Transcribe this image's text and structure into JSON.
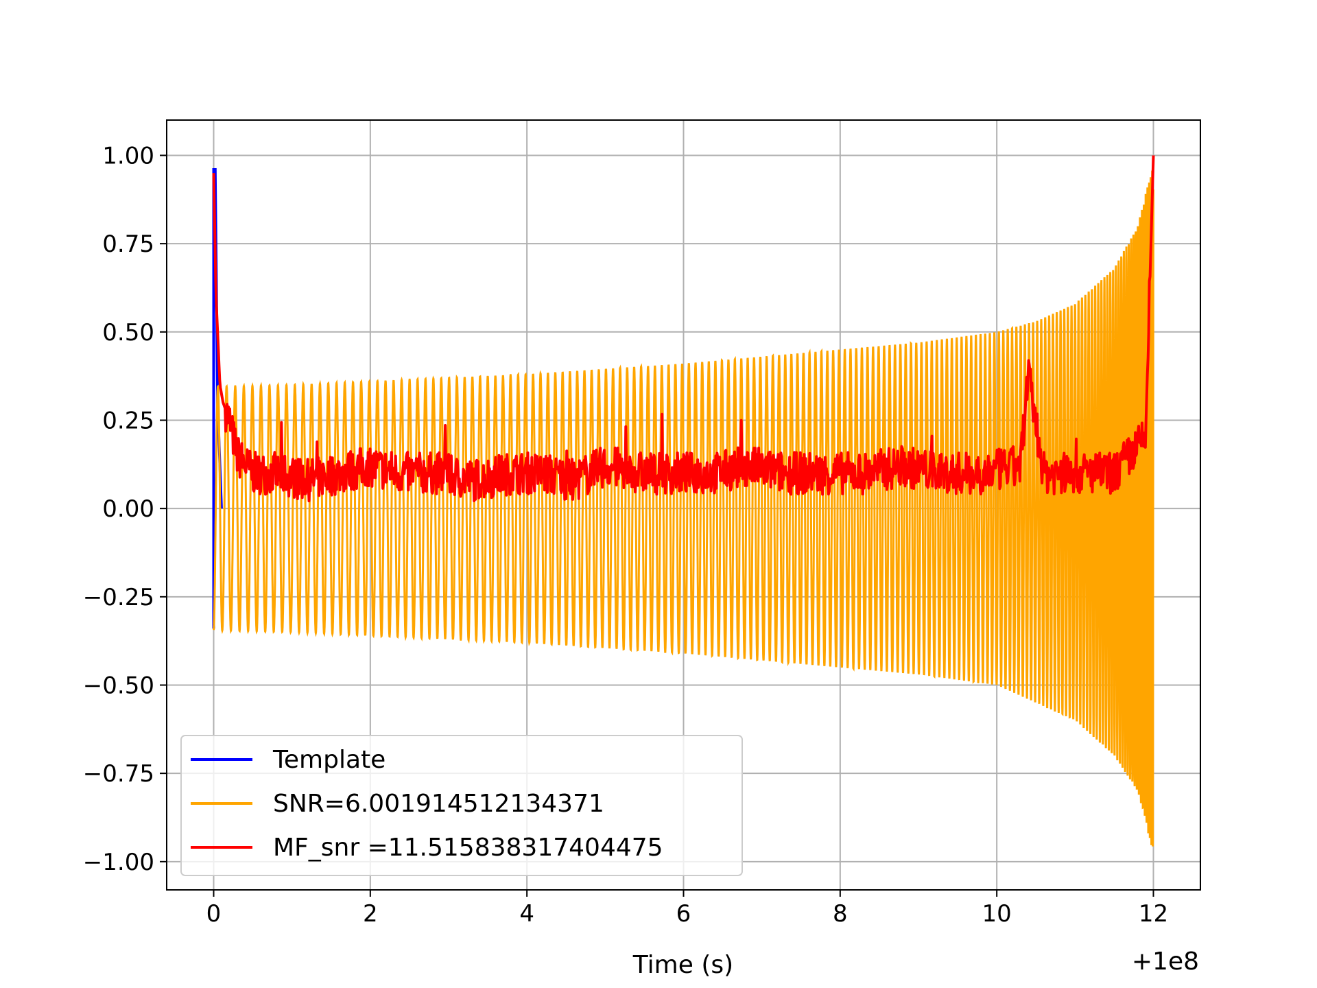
{
  "chart_data": {
    "type": "line",
    "title": "",
    "xlabel": "Time (s)",
    "ylabel": "",
    "x_offset_label": "+1e8",
    "xlim": [
      -0.6,
      12.6
    ],
    "ylim": [
      -1.08,
      1.1
    ],
    "xticks": [
      0,
      2,
      4,
      6,
      8,
      10,
      12
    ],
    "xtick_labels": [
      "0",
      "2",
      "4",
      "6",
      "8",
      "10",
      "12"
    ],
    "yticks": [
      1.0,
      0.75,
      0.5,
      0.25,
      0.0,
      -0.25,
      -0.5,
      -0.75,
      -1.0
    ],
    "ytick_labels": [
      "1.00",
      "0.75",
      "0.50",
      "0.25",
      "0.00",
      "−0.25",
      "−0.50",
      "−0.75",
      "−1.00"
    ],
    "grid": true,
    "legend_position": "bottom-left",
    "series": [
      {
        "name": "Template",
        "color": "#0000ff",
        "description_points": {
          "x": [
            0.0,
            0.0,
            0.02,
            0.05,
            0.1
          ],
          "y": [
            -0.34,
            0.96,
            0.96,
            0.3,
            0.0
          ]
        }
      },
      {
        "name": "SNR=6.001914512134371",
        "color": "#ffa500",
        "envelope": {
          "x": [
            0,
            1,
            2,
            3,
            4,
            5,
            6,
            7,
            8,
            9,
            10,
            10.5,
            11,
            11.5,
            11.8,
            12
          ],
          "upper": [
            0.345,
            0.35,
            0.36,
            0.37,
            0.38,
            0.395,
            0.41,
            0.43,
            0.45,
            0.47,
            0.5,
            0.53,
            0.58,
            0.68,
            0.8,
            0.98
          ],
          "lower": [
            -0.345,
            -0.35,
            -0.36,
            -0.37,
            -0.38,
            -0.395,
            -0.41,
            -0.43,
            -0.45,
            -0.47,
            -0.5,
            -0.55,
            -0.6,
            -0.7,
            -0.8,
            -0.98
          ]
        }
      },
      {
        "name": "MF_snr =11.515838317404475",
        "color": "#ff0000",
        "x": [
          0.0,
          0.03,
          0.08,
          0.12,
          0.2,
          0.3,
          0.5,
          0.8,
          1.2,
          1.6,
          2.0,
          2.4,
          2.9,
          3.3,
          3.8,
          4.2,
          4.6,
          5.0,
          5.5,
          5.9,
          6.4,
          6.8,
          7.3,
          7.8,
          8.3,
          8.8,
          9.3,
          9.8,
          10.3,
          10.4,
          10.6,
          11.0,
          11.5,
          11.9,
          12.0
        ],
        "y": [
          0.95,
          0.6,
          0.35,
          0.3,
          0.25,
          0.15,
          0.1,
          0.1,
          0.08,
          0.1,
          0.12,
          0.1,
          0.1,
          0.08,
          0.1,
          0.1,
          0.08,
          0.12,
          0.1,
          0.1,
          0.1,
          0.12,
          0.1,
          0.1,
          0.1,
          0.12,
          0.1,
          0.1,
          0.12,
          0.38,
          0.1,
          0.1,
          0.1,
          0.2,
          1.0
        ]
      }
    ]
  }
}
